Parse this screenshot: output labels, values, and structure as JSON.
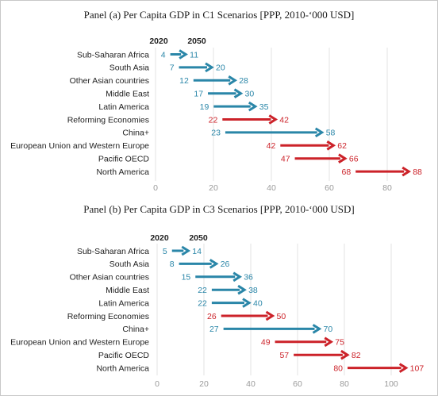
{
  "colors": {
    "increase_blue": "#2a86a8",
    "increase_red": "#cc2229",
    "grid": "#e3e3e3"
  },
  "chart_data": [
    {
      "type": "arrow-dumbbell",
      "title": "Panel (a) Per Capita GDP in C1 Scenarios [PPP, 2010-‘000 USD]",
      "start_label": "2020",
      "end_label": "2050",
      "categories": [
        "Sub-Saharan Africa",
        "South Asia",
        "Other Asian countries",
        "Middle East",
        "Latin America",
        "Reforming Economies",
        "China+",
        "European Union and Western Europe",
        "Pacific OECD",
        "North America"
      ],
      "start": [
        4,
        7,
        12,
        17,
        19,
        22,
        23,
        42,
        47,
        68
      ],
      "end": [
        11,
        20,
        28,
        30,
        35,
        42,
        58,
        62,
        66,
        88
      ],
      "colors": [
        "blue",
        "blue",
        "blue",
        "blue",
        "blue",
        "red",
        "blue",
        "red",
        "red",
        "red"
      ],
      "xlim": [
        0,
        92
      ],
      "xticks": [
        0,
        20,
        40,
        60,
        80
      ],
      "grid": true
    },
    {
      "type": "arrow-dumbbell",
      "title": "Panel (b) Per Capita GDP in C3 Scenarios [PPP, 2010-‘000 USD]",
      "start_label": "2020",
      "end_label": "2050",
      "categories": [
        "Sub-Saharan Africa",
        "South Asia",
        "Other Asian countries",
        "Middle East",
        "Latin America",
        "Reforming Economies",
        "China+",
        "European Union and Western Europe",
        "Pacific OECD",
        "North America"
      ],
      "start": [
        5,
        8,
        15,
        22,
        22,
        26,
        27,
        49,
        57,
        80
      ],
      "end": [
        14,
        26,
        36,
        38,
        40,
        50,
        70,
        75,
        82,
        107
      ],
      "colors": [
        "blue",
        "blue",
        "blue",
        "blue",
        "blue",
        "red",
        "blue",
        "red",
        "red",
        "red"
      ],
      "xlim": [
        0,
        110
      ],
      "xticks": [
        0,
        20,
        40,
        60,
        80,
        100
      ],
      "grid": true
    }
  ]
}
